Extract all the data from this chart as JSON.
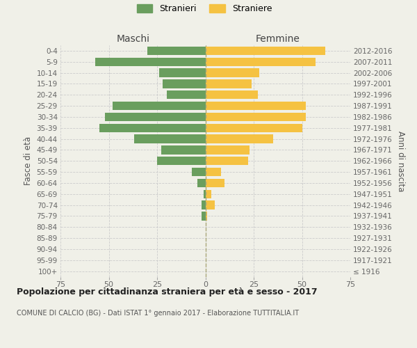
{
  "age_groups": [
    "100+",
    "95-99",
    "90-94",
    "85-89",
    "80-84",
    "75-79",
    "70-74",
    "65-69",
    "60-64",
    "55-59",
    "50-54",
    "45-49",
    "40-44",
    "35-39",
    "30-34",
    "25-29",
    "20-24",
    "15-19",
    "10-14",
    "5-9",
    "0-4"
  ],
  "birth_years": [
    "≤ 1916",
    "1917-1921",
    "1922-1926",
    "1927-1931",
    "1932-1936",
    "1937-1941",
    "1942-1946",
    "1947-1951",
    "1952-1956",
    "1957-1961",
    "1962-1966",
    "1967-1971",
    "1972-1976",
    "1977-1981",
    "1982-1986",
    "1987-1991",
    "1992-1996",
    "1997-2001",
    "2002-2006",
    "2007-2011",
    "2012-2016"
  ],
  "maschi": [
    0,
    0,
    0,
    0,
    0,
    2,
    2,
    1,
    4,
    7,
    25,
    23,
    37,
    55,
    52,
    48,
    20,
    22,
    24,
    57,
    30
  ],
  "femmine": [
    0,
    0,
    0,
    0,
    0,
    1,
    5,
    3,
    10,
    8,
    22,
    23,
    35,
    50,
    52,
    52,
    27,
    24,
    28,
    57,
    62
  ],
  "male_color": "#6a9e5e",
  "female_color": "#f5c242",
  "background_color": "#f0f0e8",
  "grid_color": "#cccccc",
  "xlim": 75,
  "title": "Popolazione per cittadinanza straniera per età e sesso - 2017",
  "subtitle": "COMUNE DI CALCIO (BG) - Dati ISTAT 1° gennaio 2017 - Elaborazione TUTTITALIA.IT",
  "ylabel_left": "Fasce di età",
  "ylabel_right": "Anni di nascita",
  "legend_male": "Stranieri",
  "legend_female": "Straniere",
  "header_male": "Maschi",
  "header_female": "Femmine"
}
